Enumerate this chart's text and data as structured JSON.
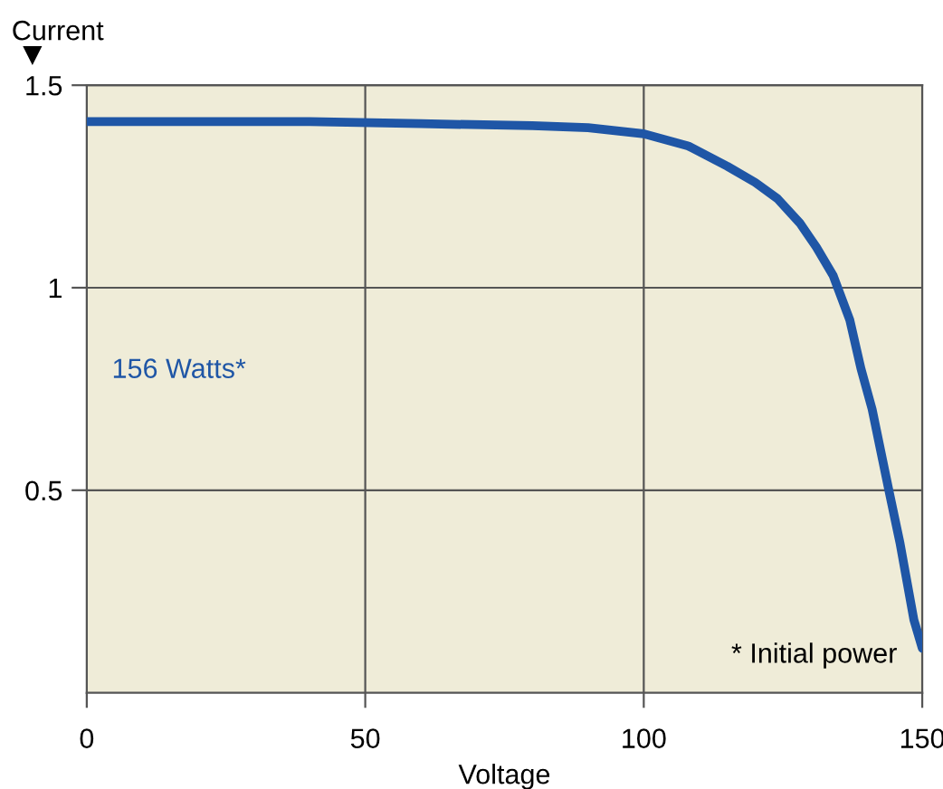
{
  "chart_data": {
    "type": "line",
    "xlabel": "Voltage",
    "ylabel": "Current",
    "x": [
      0,
      20,
      40,
      60,
      80,
      90,
      100,
      108,
      115,
      120,
      124,
      128,
      131,
      134,
      137,
      139,
      141,
      144,
      146,
      148.5,
      150
    ],
    "series": [
      {
        "color": "#1f56a6",
        "values": [
          1.41,
          1.41,
          1.41,
          1.405,
          1.4,
          1.395,
          1.38,
          1.35,
          1.3,
          1.26,
          1.22,
          1.16,
          1.1,
          1.03,
          0.92,
          0.8,
          0.7,
          0.5,
          0.37,
          0.18,
          0.11
        ]
      }
    ],
    "xlim": [
      0,
      150
    ],
    "ylim": [
      0,
      1.5
    ],
    "xticks": [
      0,
      50,
      100,
      150
    ],
    "yticks": [
      0.5,
      1,
      1.5
    ],
    "grid": true,
    "marker": "none",
    "line_style": "solid",
    "annotations": [
      "156 Watts*",
      "* Initial power"
    ]
  }
}
